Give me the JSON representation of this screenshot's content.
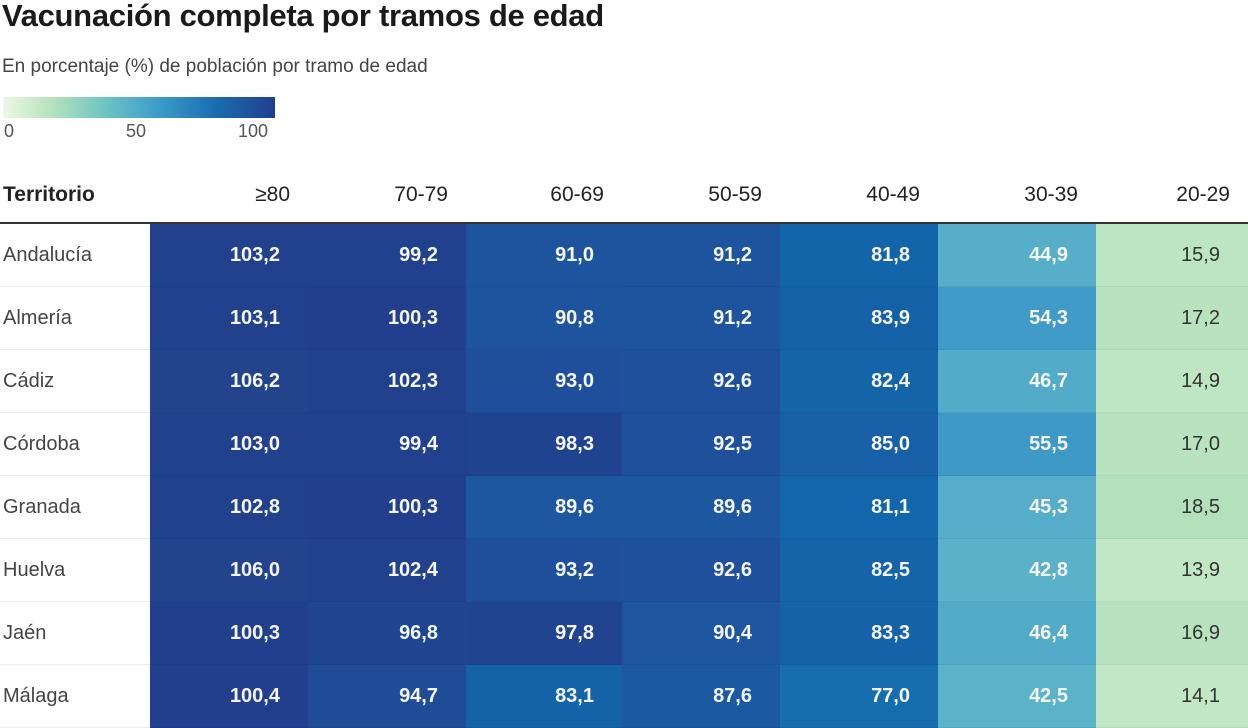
{
  "title": "Vacunación completa por tramos de edad",
  "subtitle": "En porcentaje (%) de población por tramo de edad",
  "legend": {
    "ticks": [
      "0",
      "50",
      "100"
    ],
    "range": [
      0,
      100
    ],
    "colors": [
      "#eef8e4",
      "#b5e2bc",
      "#6cc3c4",
      "#3b9ac9",
      "#1a6db0",
      "#213f8c"
    ]
  },
  "chart_data": {
    "type": "heatmap",
    "title": "Vacunación completa por tramos de edad",
    "subtitle": "En porcentaje (%) de población por tramo de edad",
    "row_header": "Territorio",
    "columns": [
      "≥80",
      "70-79",
      "60-69",
      "50-59",
      "40-49",
      "30-39",
      "20-29"
    ],
    "color_scale": {
      "min": 0,
      "max": 100,
      "legend_ticks": [
        0,
        50,
        100
      ]
    },
    "rows": [
      {
        "name": "Andalucía",
        "values": [
          103.2,
          99.2,
          91.0,
          91.2,
          81.8,
          44.9,
          15.9
        ],
        "labels": [
          "103,2",
          "99,2",
          "91,0",
          "91,2",
          "81,8",
          "44,9",
          "15,9"
        ]
      },
      {
        "name": "Almería",
        "values": [
          103.1,
          100.3,
          90.8,
          91.2,
          83.9,
          54.3,
          17.2
        ],
        "labels": [
          "103,1",
          "100,3",
          "90,8",
          "91,2",
          "83,9",
          "54,3",
          "17,2"
        ]
      },
      {
        "name": "Cádiz",
        "values": [
          106.2,
          102.3,
          93.0,
          92.6,
          82.4,
          46.7,
          14.9
        ],
        "labels": [
          "106,2",
          "102,3",
          "93,0",
          "92,6",
          "82,4",
          "46,7",
          "14,9"
        ]
      },
      {
        "name": "Córdoba",
        "values": [
          103.0,
          99.4,
          98.3,
          92.5,
          85.0,
          55.5,
          17.0
        ],
        "labels": [
          "103,0",
          "99,4",
          "98,3",
          "92,5",
          "85,0",
          "55,5",
          "17,0"
        ]
      },
      {
        "name": "Granada",
        "values": [
          102.8,
          100.3,
          89.6,
          89.6,
          81.1,
          45.3,
          18.5
        ],
        "labels": [
          "102,8",
          "100,3",
          "89,6",
          "89,6",
          "81,1",
          "45,3",
          "18,5"
        ]
      },
      {
        "name": "Huelva",
        "values": [
          106.0,
          102.4,
          93.2,
          92.6,
          82.5,
          42.8,
          13.9
        ],
        "labels": [
          "106,0",
          "102,4",
          "93,2",
          "92,6",
          "82,5",
          "42,8",
          "13,9"
        ]
      },
      {
        "name": "Jaén",
        "values": [
          100.3,
          96.8,
          97.8,
          90.4,
          83.3,
          46.4,
          16.9
        ],
        "labels": [
          "100,3",
          "96,8",
          "97,8",
          "90,4",
          "83,3",
          "46,4",
          "16,9"
        ]
      },
      {
        "name": "Málaga",
        "values": [
          100.4,
          94.7,
          83.1,
          87.6,
          77.0,
          42.5,
          14.1
        ],
        "labels": [
          "100,4",
          "94,7",
          "83,1",
          "87,6",
          "77,0",
          "42,5",
          "14,1"
        ]
      }
    ]
  }
}
